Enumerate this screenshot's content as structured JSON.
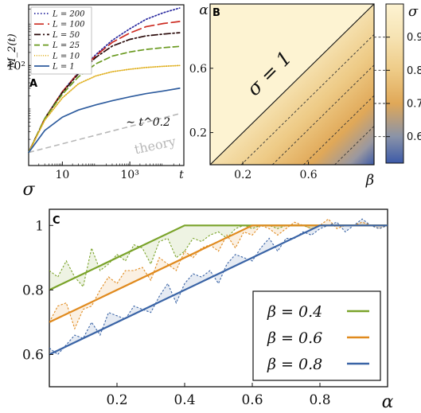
{
  "chart_data": [
    {
      "panel": "A",
      "type": "line",
      "ylabel": "M_2(t)",
      "xlabel": "t",
      "x_scale": "log",
      "y_scale": "log",
      "xlim": [
        1,
        40000
      ],
      "ylim": [
        0.5,
        2500
      ],
      "x_ticks": [
        {
          "value": 10,
          "label": "10"
        },
        {
          "value": 1000,
          "label": "10³"
        }
      ],
      "y_ticks": [
        {
          "value": 100,
          "label": "10²"
        }
      ],
      "series": [
        {
          "name": "L = 200",
          "color": "#2b2ba0",
          "style": "dotted",
          "x": [
            1,
            3,
            10,
            30,
            100,
            300,
            1000,
            3000,
            10000,
            30000
          ],
          "y": [
            1,
            6,
            25,
            70,
            180,
            380,
            700,
            1150,
            1650,
            2100
          ]
        },
        {
          "name": "L = 100",
          "color": "#cc2a20",
          "style": "longdash",
          "x": [
            1,
            3,
            10,
            30,
            100,
            300,
            1000,
            3000,
            10000,
            30000
          ],
          "y": [
            1,
            6,
            25,
            68,
            170,
            340,
            560,
            780,
            930,
            1030
          ]
        },
        {
          "name": "L = 50",
          "color": "#2a0a0a",
          "style": "dashdot",
          "x": [
            1,
            3,
            10,
            30,
            100,
            300,
            1000,
            3000,
            10000,
            30000
          ],
          "y": [
            1,
            6,
            24,
            65,
            155,
            280,
            400,
            480,
            530,
            570
          ]
        },
        {
          "name": "L = 25",
          "color": "#6a9a20",
          "style": "dashed",
          "x": [
            1,
            3,
            10,
            30,
            100,
            300,
            1000,
            3000,
            10000,
            30000
          ],
          "y": [
            1,
            6,
            22,
            55,
            110,
            165,
            205,
            235,
            258,
            275
          ]
        },
        {
          "name": "L = 10",
          "color": "#e0b020",
          "style": "fine-dotted",
          "x": [
            1,
            3,
            10,
            30,
            100,
            300,
            1000,
            3000,
            10000,
            30000
          ],
          "y": [
            1,
            5.5,
            18,
            38,
            58,
            72,
            82,
            90,
            96,
            100
          ]
        },
        {
          "name": "L = 1",
          "color": "#2e5c9e",
          "style": "solid",
          "x": [
            1,
            3,
            10,
            30,
            100,
            300,
            1000,
            3000,
            10000,
            30000
          ],
          "y": [
            1,
            3.2,
            6.5,
            9.5,
            12.5,
            15.5,
            19,
            22.5,
            26,
            30
          ]
        }
      ],
      "reference_line": {
        "label": "theory",
        "slope_label": "∼ t^0.2",
        "color": "#b8b8b8",
        "x": [
          1,
          30000
        ],
        "y": [
          1,
          7.8
        ]
      }
    },
    {
      "panel": "B",
      "type": "heatmap",
      "xlabel": "β",
      "ylabel": "α",
      "xlim": [
        0,
        1
      ],
      "ylim": [
        0,
        1
      ],
      "x_ticks": [
        {
          "value": 0.2,
          "label": "0.2"
        },
        {
          "value": 0.6,
          "label": "0.6"
        }
      ],
      "y_ticks": [
        {
          "value": 0.2,
          "label": "0.2"
        },
        {
          "value": 0.6,
          "label": "0.6"
        }
      ],
      "annotation": "σ = 1",
      "diagonal": {
        "x": [
          0,
          1
        ],
        "y": [
          0,
          1
        ]
      },
      "contour_levels": [
        0.9,
        0.8,
        0.7,
        0.6
      ],
      "colorbar": {
        "label": "σ",
        "range": [
          0.52,
          1.0
        ],
        "ticks": [
          {
            "value": 0.9,
            "label": "0.9"
          },
          {
            "value": 0.8,
            "label": "0.8"
          },
          {
            "value": 0.7,
            "label": "0.7"
          },
          {
            "value": 0.6,
            "label": "0.6"
          }
        ],
        "colors": [
          {
            "value": 0.52,
            "color": "#3c5aa8"
          },
          {
            "value": 0.6,
            "color": "#8a93a8"
          },
          {
            "value": 0.7,
            "color": "#e0a858"
          },
          {
            "value": 0.8,
            "color": "#eecb87"
          },
          {
            "value": 0.9,
            "color": "#f6e3b3"
          },
          {
            "value": 1.0,
            "color": "#fdf3d2"
          }
        ]
      }
    },
    {
      "panel": "C",
      "type": "line",
      "xlabel": "α",
      "ylabel": "σ",
      "xlim": [
        0,
        1
      ],
      "ylim": [
        0.5,
        1.05
      ],
      "x_ticks": [
        {
          "value": 0.2,
          "label": "0.2"
        },
        {
          "value": 0.4,
          "label": "0.4"
        },
        {
          "value": 0.6,
          "label": "0.6"
        },
        {
          "value": 0.8,
          "label": "0.8"
        }
      ],
      "y_ticks": [
        {
          "value": 0.6,
          "label": "0.6"
        },
        {
          "value": 0.8,
          "label": "0.8"
        },
        {
          "value": 1.0,
          "label": "1"
        }
      ],
      "legend_position": "lower-right",
      "series": [
        {
          "name": "β = 0.4",
          "color": "#7aa32a",
          "theory": {
            "x": [
              0,
              0.4,
              1.0
            ],
            "y": [
              0.8,
              1.0,
              1.0
            ]
          },
          "data": {
            "x": [
              0,
              0.025,
              0.05,
              0.075,
              0.1,
              0.125,
              0.15,
              0.175,
              0.2,
              0.225,
              0.25,
              0.275,
              0.3,
              0.325,
              0.35,
              0.375,
              0.4,
              0.425,
              0.45,
              0.475,
              0.5,
              0.525,
              0.55,
              0.575,
              0.6,
              0.625,
              0.65,
              0.675,
              0.7,
              0.725,
              0.75,
              0.775,
              0.8,
              0.825,
              0.85,
              0.875,
              0.9,
              0.925,
              0.95,
              0.975,
              1.0
            ],
            "y": [
              0.86,
              0.84,
              0.89,
              0.84,
              0.81,
              0.93,
              0.86,
              0.88,
              0.91,
              0.89,
              0.94,
              0.93,
              0.88,
              0.95,
              0.96,
              0.9,
              0.92,
              0.96,
              0.95,
              0.97,
              0.98,
              0.96,
              0.99,
              1.0,
              0.99,
              1.0,
              1.0,
              0.99,
              1.0,
              1.0,
              1.0,
              0.99,
              1.0,
              1.0,
              1.0,
              1.0,
              1.0,
              1.0,
              1.0,
              1.0,
              1.0
            ]
          }
        },
        {
          "name": "β = 0.6",
          "color": "#e08a1e",
          "theory": {
            "x": [
              0,
              0.6,
              1.0
            ],
            "y": [
              0.7,
              1.0,
              1.0
            ]
          },
          "data": {
            "x": [
              0,
              0.025,
              0.05,
              0.075,
              0.1,
              0.125,
              0.15,
              0.175,
              0.2,
              0.225,
              0.25,
              0.275,
              0.3,
              0.325,
              0.35,
              0.375,
              0.4,
              0.425,
              0.45,
              0.475,
              0.5,
              0.525,
              0.55,
              0.575,
              0.6,
              0.625,
              0.65,
              0.675,
              0.7,
              0.725,
              0.75,
              0.775,
              0.8,
              0.825,
              0.85,
              0.875,
              0.9,
              0.925,
              0.95,
              0.975,
              1.0
            ],
            "y": [
              0.7,
              0.75,
              0.76,
              0.68,
              0.74,
              0.75,
              0.8,
              0.84,
              0.82,
              0.86,
              0.86,
              0.87,
              0.83,
              0.9,
              0.88,
              0.86,
              0.92,
              0.9,
              0.93,
              0.94,
              0.92,
              0.97,
              0.93,
              0.98,
              0.97,
              1.0,
              0.99,
              0.97,
              0.99,
              1.01,
              1.0,
              0.99,
              1.0,
              1.02,
              0.99,
              1.0,
              1.0,
              1.01,
              1.0,
              0.99,
              1.0
            ]
          }
        },
        {
          "name": "β = 0.8",
          "color": "#3a64a6",
          "theory": {
            "x": [
              0,
              0.8,
              1.0
            ],
            "y": [
              0.6,
              1.0,
              1.0
            ]
          },
          "data": {
            "x": [
              0,
              0.025,
              0.05,
              0.075,
              0.1,
              0.125,
              0.15,
              0.175,
              0.2,
              0.225,
              0.25,
              0.275,
              0.3,
              0.325,
              0.35,
              0.375,
              0.4,
              0.425,
              0.45,
              0.475,
              0.5,
              0.525,
              0.55,
              0.575,
              0.6,
              0.625,
              0.65,
              0.675,
              0.7,
              0.725,
              0.75,
              0.775,
              0.8,
              0.825,
              0.85,
              0.875,
              0.9,
              0.925,
              0.95,
              0.975,
              1.0
            ],
            "y": [
              0.62,
              0.6,
              0.63,
              0.66,
              0.65,
              0.7,
              0.66,
              0.73,
              0.72,
              0.71,
              0.75,
              0.74,
              0.73,
              0.78,
              0.82,
              0.76,
              0.82,
              0.85,
              0.84,
              0.86,
              0.82,
              0.88,
              0.91,
              0.9,
              0.89,
              0.93,
              0.96,
              0.92,
              0.96,
              0.96,
              0.98,
              0.97,
              0.99,
              1.0,
              1.01,
              0.98,
              1.0,
              1.02,
              1.0,
              0.99,
              1.0
            ]
          }
        }
      ]
    }
  ],
  "panel_labels": {
    "a": "A",
    "b": "B",
    "c": "C"
  }
}
